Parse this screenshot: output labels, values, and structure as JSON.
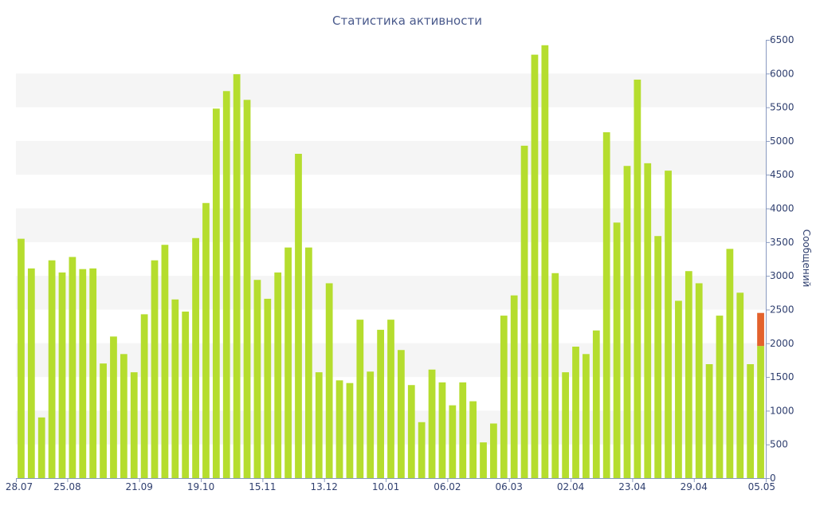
{
  "chart_data": {
    "type": "bar",
    "title": "Статистика активности",
    "ylabel": "Сообщений",
    "xlabel": "",
    "ylim": [
      0,
      6500
    ],
    "yticks": [
      0,
      500,
      1000,
      1500,
      2000,
      2500,
      3000,
      3500,
      4000,
      4500,
      5000,
      5500,
      6000,
      6500
    ],
    "y_axis_side": "right",
    "grid": "alternating horizontal bands",
    "xtick_labels": [
      {
        "index": 0,
        "label": "28.07"
      },
      {
        "index": 5,
        "label": "25.08"
      },
      {
        "index": 12,
        "label": "21.09"
      },
      {
        "index": 18,
        "label": "19.10"
      },
      {
        "index": 24,
        "label": "15.11"
      },
      {
        "index": 30,
        "label": "13.12"
      },
      {
        "index": 36,
        "label": "10.01"
      },
      {
        "index": 42,
        "label": "06.02"
      },
      {
        "index": 48,
        "label": "06.03"
      },
      {
        "index": 54,
        "label": "02.04"
      },
      {
        "index": 60,
        "label": "23.04"
      },
      {
        "index": 66,
        "label": "29.04"
      },
      {
        "index": 72,
        "label": "05.05"
      }
    ],
    "colors": {
      "bar": "#b5dd2e",
      "highlight": "#e3622c",
      "band": "#f5f5f5",
      "axis": "#8a9ac0",
      "text": "#2f3f6f",
      "title": "#4a5a8c"
    },
    "values": [
      3550,
      3110,
      900,
      3230,
      3050,
      3280,
      3100,
      3110,
      1700,
      2100,
      1840,
      1570,
      2430,
      3230,
      3460,
      2650,
      2470,
      3560,
      4080,
      5480,
      5740,
      5990,
      5610,
      2940,
      2660,
      3050,
      3420,
      4810,
      3420,
      1570,
      2890,
      1450,
      1410,
      2350,
      1580,
      2200,
      2350,
      1900,
      1380,
      830,
      1610,
      1420,
      1080,
      1420,
      1140,
      530,
      810,
      2410,
      2710,
      4930,
      6280,
      6420,
      3040,
      1570,
      1950,
      1840,
      2190,
      5130,
      3790,
      4630,
      5910,
      4670,
      3590,
      4560,
      2630,
      3070,
      2890,
      1690,
      2410,
      3400,
      2750,
      1690,
      1960
    ],
    "last_bar_extra": 490
  }
}
